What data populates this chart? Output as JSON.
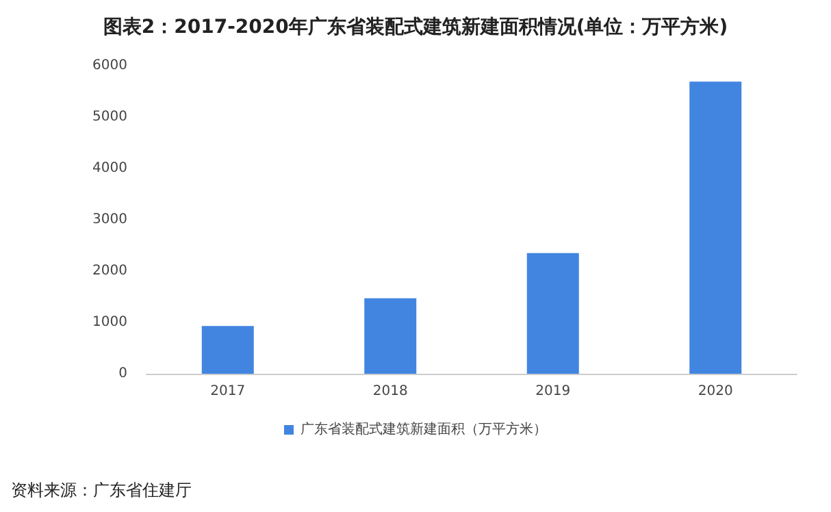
{
  "chart_data": {
    "type": "bar",
    "title": "图表2：2017-2020年广东省装配式建筑新建面积情况(单位：万平方米)",
    "categories": [
      "2017",
      "2018",
      "2019",
      "2020"
    ],
    "series": [
      {
        "name": "广东省装配式建筑新建面积（万平方米）",
        "color": "#4285e1",
        "values": [
          930,
          1470,
          2350,
          5690
        ]
      }
    ],
    "ylim": [
      0,
      6000
    ],
    "yticks": [
      0,
      1000,
      2000,
      3000,
      4000,
      5000,
      6000
    ],
    "grid": false,
    "legend": "bottom",
    "annotations": [
      "资料来源：广东省住建厅"
    ]
  }
}
